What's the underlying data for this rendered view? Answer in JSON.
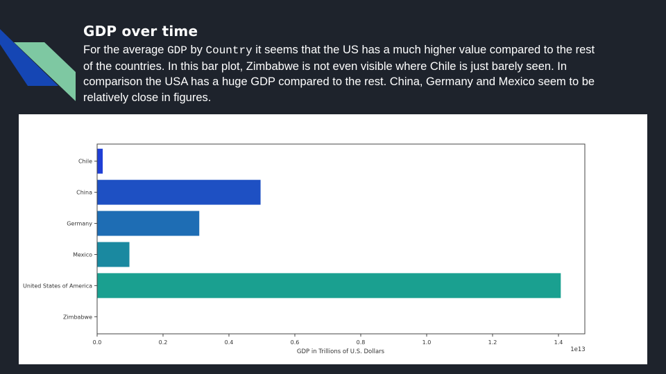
{
  "slide": {
    "title": "GDP over time",
    "body": {
      "part1": "For the average ",
      "code1": "GDP",
      "part2": " by ",
      "code2": "Country",
      "part3": " it seems that the US has a much higher value compared to the rest of the countries. In this bar plot, Zimbabwe is not even visible where Chile is just barely seen. In comparison the USA has a huge GDP compared to the rest. China, Germany and Mexico seem to be relatively close in figures."
    }
  },
  "colors": {
    "background": "#1e232c",
    "deco_blue": "#1546b4",
    "deco_green": "#7ec8a2"
  },
  "chart_data": {
    "type": "bar",
    "orientation": "horizontal",
    "categories": [
      "Chile",
      "China",
      "Germany",
      "Mexico",
      "United States of America",
      "Zimbabwe"
    ],
    "values": [
      0.017,
      0.496,
      0.31,
      0.098,
      1.407,
      0.001
    ],
    "colors": [
      "#1f3fd6",
      "#1e50c3",
      "#1e6db4",
      "#1a89a0",
      "#1aa090",
      "#19a88a"
    ],
    "xlabel": "GDP in Trillions of U.S. Dollars",
    "ylabel": "",
    "xlim": [
      0,
      1.48
    ],
    "x_ticks": [
      0.0,
      0.2,
      0.4,
      0.6,
      0.8,
      1.0,
      1.2,
      1.4
    ],
    "x_tick_labels": [
      "0.0",
      "0.2",
      "0.4",
      "0.6",
      "0.8",
      "1.0",
      "1.2",
      "1.4"
    ],
    "x_offset_label": "1e13",
    "grid": false
  }
}
